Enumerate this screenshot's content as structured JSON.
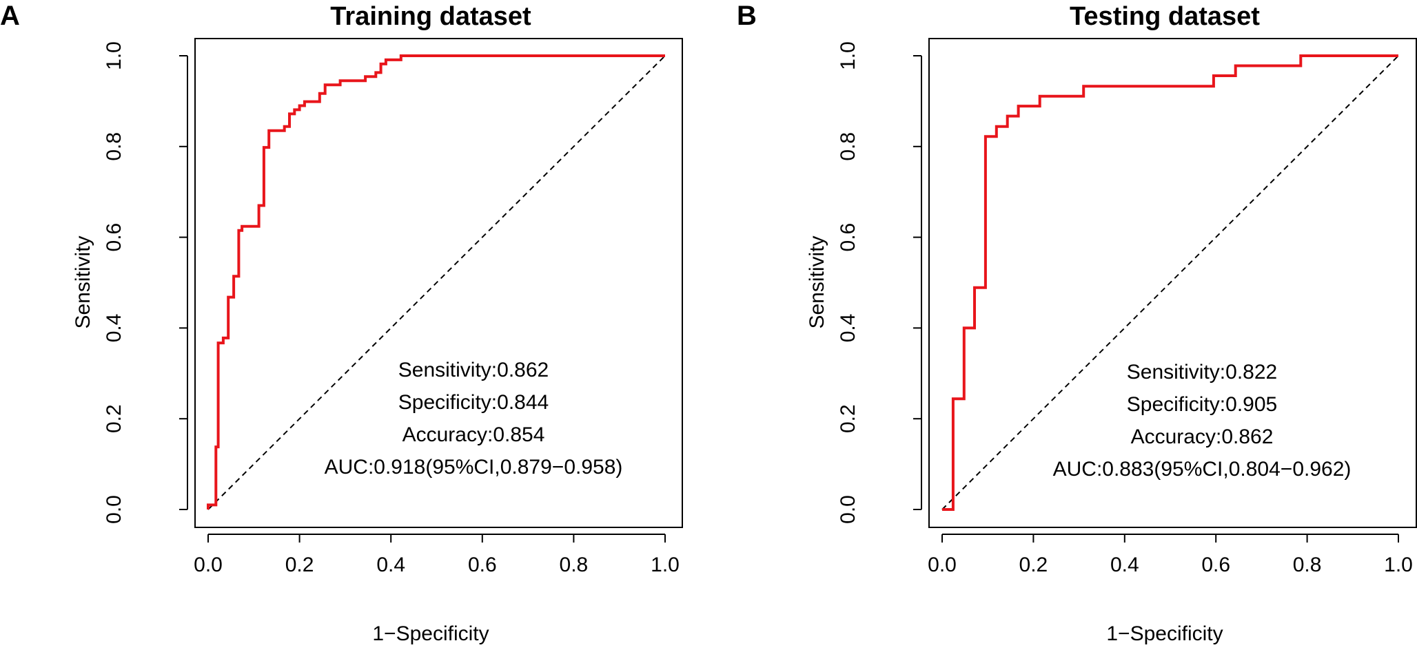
{
  "chart_data": [
    {
      "type": "line",
      "panel_letter": "A",
      "title": "Training dataset",
      "xlabel": "1−Specificity",
      "ylabel": "Sensitivity",
      "xlim": [
        0,
        1
      ],
      "ylim": [
        0,
        1
      ],
      "x_ticks": [
        "0.0",
        "0.2",
        "0.4",
        "0.6",
        "0.8",
        "1.0"
      ],
      "y_ticks": [
        "0.0",
        "0.2",
        "0.4",
        "0.6",
        "0.8",
        "1.0"
      ],
      "line_color": "#e8151b",
      "reference_line": "dashed diagonal",
      "annotations": [
        "Sensitivity:0.862",
        "Specificity:0.844",
        "Accuracy:0.854",
        "AUC:0.918(95%CI,0.879−0.958)"
      ],
      "series": [
        {
          "name": "ROC",
          "x": [
            0,
            0,
            0.017,
            0.017,
            0.022,
            0.022,
            0.033,
            0.033,
            0.044,
            0.044,
            0.056,
            0.056,
            0.067,
            0.067,
            0.074,
            0.074,
            0.089,
            0.089,
            0.111,
            0.111,
            0.122,
            0.122,
            0.133,
            0.133,
            0.167,
            0.167,
            0.178,
            0.178,
            0.189,
            0.189,
            0.2,
            0.2,
            0.211,
            0.211,
            0.244,
            0.244,
            0.256,
            0.256,
            0.278,
            0.278,
            0.289,
            0.289,
            0.344,
            0.344,
            0.367,
            0.367,
            0.378,
            0.378,
            0.389,
            0.389,
            0.411,
            0.411,
            0.422,
            0.422,
            1
          ],
          "y": [
            0,
            0.01,
            0.01,
            0.138,
            0.138,
            0.367,
            0.367,
            0.378,
            0.378,
            0.468,
            0.468,
            0.514,
            0.514,
            0.615,
            0.615,
            0.624,
            0.624,
            0.624,
            0.624,
            0.67,
            0.67,
            0.798,
            0.798,
            0.835,
            0.835,
            0.844,
            0.844,
            0.872,
            0.872,
            0.881,
            0.881,
            0.89,
            0.89,
            0.899,
            0.899,
            0.917,
            0.917,
            0.936,
            0.936,
            0.936,
            0.936,
            0.945,
            0.945,
            0.954,
            0.954,
            0.963,
            0.963,
            0.982,
            0.982,
            0.991,
            0.991,
            0.991,
            0.991,
            1,
            1
          ]
        }
      ]
    },
    {
      "type": "line",
      "panel_letter": "B",
      "title": "Testing dataset",
      "xlabel": "1−Specificity",
      "ylabel": "Sensitivity",
      "xlim": [
        0,
        1
      ],
      "ylim": [
        0,
        1
      ],
      "x_ticks": [
        "0.0",
        "0.2",
        "0.4",
        "0.6",
        "0.8",
        "1.0"
      ],
      "y_ticks": [
        "0.0",
        "0.2",
        "0.4",
        "0.6",
        "0.8",
        "1.0"
      ],
      "line_color": "#e8151b",
      "reference_line": "dashed diagonal",
      "annotations": [
        "Sensitivity:0.822",
        "Specificity:0.905",
        "Accuracy:0.862",
        "AUC:0.883(95%CI,0.804−0.962)"
      ],
      "series": [
        {
          "name": "ROC",
          "x": [
            0,
            0.024,
            0.024,
            0.024,
            0.048,
            0.048,
            0.071,
            0.071,
            0.095,
            0.095,
            0.119,
            0.119,
            0.143,
            0.143,
            0.167,
            0.167,
            0.214,
            0.214,
            0.31,
            0.31,
            0.595,
            0.595,
            0.643,
            0.643,
            0.786,
            0.786,
            1
          ],
          "y": [
            0,
            0,
            0.244,
            0.244,
            0.244,
            0.4,
            0.4,
            0.489,
            0.489,
            0.822,
            0.822,
            0.844,
            0.844,
            0.867,
            0.867,
            0.889,
            0.889,
            0.911,
            0.911,
            0.933,
            0.933,
            0.956,
            0.956,
            0.978,
            0.978,
            1,
            1
          ]
        }
      ]
    }
  ]
}
